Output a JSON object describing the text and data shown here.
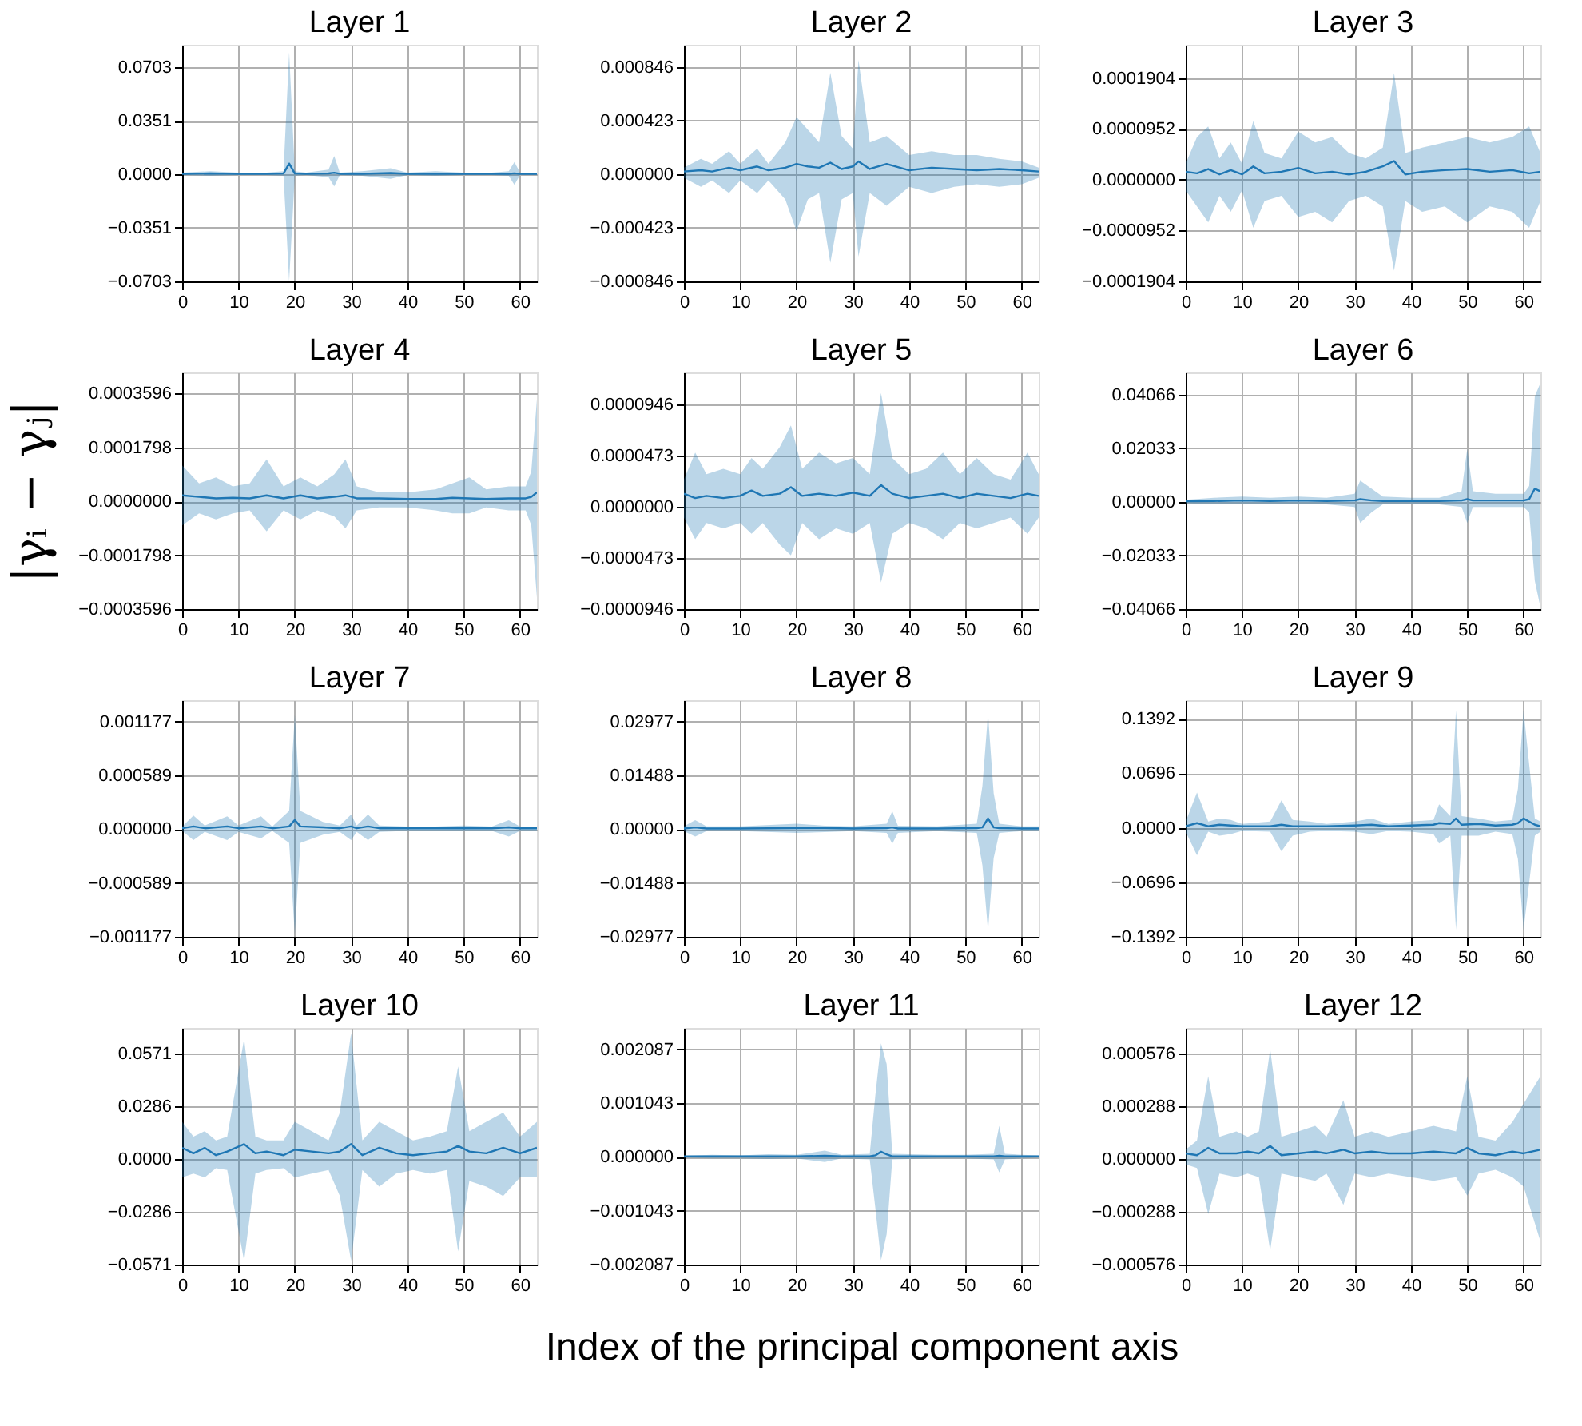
{
  "chart_data": [
    {
      "type": "line",
      "title": "Layer 1",
      "xlim": [
        0,
        63
      ],
      "xticks": [
        0,
        10,
        20,
        30,
        40,
        50,
        60
      ],
      "ylim": [
        -0.0703,
        0.085
      ],
      "yticks": [
        {
          "value": -0.0703,
          "label": "−0.0703"
        },
        {
          "value": -0.0351,
          "label": "−0.0351"
        },
        {
          "value": 0,
          "label": "0.0000"
        },
        {
          "value": 0.0351,
          "label": "0.0351"
        },
        {
          "value": 0.0703,
          "label": "0.0703"
        }
      ],
      "grid": true,
      "marker": "none",
      "series": [
        {
          "color": "#1f77b4",
          "x": [
            0,
            5,
            10,
            15,
            18,
            19,
            20,
            22,
            26,
            27,
            28,
            32,
            37,
            40,
            45,
            50,
            55,
            58,
            59,
            60,
            63
          ],
          "values": [
            0.0002,
            0.0005,
            0.0002,
            0.0003,
            0.0005,
            0.007,
            0.0005,
            0.0003,
            0.0005,
            0.001,
            0.0003,
            0.0003,
            0.0008,
            0.0003,
            0.0003,
            0.0002,
            0.0002,
            0.0003,
            0.0006,
            0.0002,
            0.0002
          ],
          "lower": [
            -0.0005,
            -0.001,
            -0.0005,
            -0.0005,
            -0.001,
            -0.07,
            -0.001,
            -0.0005,
            -0.002,
            -0.008,
            -0.0005,
            -0.001,
            -0.003,
            -0.0005,
            -0.001,
            -0.0005,
            -0.0005,
            -0.001,
            -0.007,
            -0.0005,
            -0.0005
          ],
          "upper": [
            0.001,
            0.002,
            0.001,
            0.001,
            0.002,
            0.08,
            0.002,
            0.001,
            0.003,
            0.012,
            0.001,
            0.002,
            0.004,
            0.001,
            0.002,
            0.001,
            0.001,
            0.002,
            0.008,
            0.001,
            0.001
          ]
        }
      ]
    },
    {
      "type": "line",
      "title": "Layer 2",
      "xlim": [
        0,
        63
      ],
      "xticks": [
        0,
        10,
        20,
        30,
        40,
        50,
        60
      ],
      "ylim": [
        -0.000846,
        0.00102
      ],
      "yticks": [
        {
          "value": -0.000846,
          "label": "−0.000846"
        },
        {
          "value": -0.000423,
          "label": "−0.000423"
        },
        {
          "value": 0,
          "label": "0.000000"
        },
        {
          "value": 0.000423,
          "label": "0.000423"
        },
        {
          "value": 0.000846,
          "label": "0.000846"
        }
      ],
      "grid": true,
      "marker": "none",
      "series": [
        {
          "color": "#1f77b4",
          "x": [
            0,
            3,
            5,
            8,
            10,
            13,
            15,
            18,
            20,
            22,
            24,
            26,
            28,
            30,
            31,
            33,
            36,
            40,
            44,
            48,
            52,
            56,
            60,
            63
          ],
          "values": [
            2e-05,
            3e-05,
            2e-05,
            5e-05,
            3e-05,
            6e-05,
            3e-05,
            5e-05,
            8e-05,
            6e-05,
            5e-05,
            9e-05,
            4e-05,
            6e-05,
            0.0001,
            4e-05,
            8e-05,
            3e-05,
            5e-05,
            4e-05,
            3e-05,
            4e-05,
            3e-05,
            2e-05
          ],
          "lower": [
            -3e-05,
            -0.0001,
            -5e-05,
            -0.00015,
            -5e-05,
            -0.00015,
            -5e-05,
            -0.0002,
            -0.00045,
            -0.0002,
            -0.00015,
            -0.0007,
            -0.0002,
            -0.00015,
            -0.00065,
            -0.00015,
            -0.00025,
            -0.0001,
            -0.00015,
            -0.0001,
            -8e-05,
            -0.0001,
            -8e-05,
            -3e-05
          ],
          "upper": [
            5e-05,
            0.00012,
            8e-05,
            0.00018,
            8e-05,
            0.0002,
            8e-05,
            0.00025,
            0.00045,
            0.00035,
            0.00025,
            0.0008,
            0.0003,
            0.0002,
            0.0009,
            0.00025,
            0.0003,
            0.00015,
            0.00018,
            0.00015,
            0.00015,
            0.00012,
            0.0001,
            5e-05
          ]
        }
      ]
    },
    {
      "type": "line",
      "title": "Layer 3",
      "xlim": [
        0,
        63
      ],
      "xticks": [
        0,
        10,
        20,
        30,
        40,
        50,
        60
      ],
      "ylim": [
        -0.0001904,
        0.000253
      ],
      "yticks": [
        {
          "value": -0.0001904,
          "label": "−0.0001904"
        },
        {
          "value": -9.52e-05,
          "label": "−0.0000952"
        },
        {
          "value": 0,
          "label": "0.0000000"
        },
        {
          "value": 9.52e-05,
          "label": "0.0000952"
        },
        {
          "value": 0.0001904,
          "label": "0.0001904"
        }
      ],
      "grid": true,
      "marker": "none",
      "series": [
        {
          "color": "#1f77b4",
          "x": [
            0,
            2,
            4,
            6,
            8,
            10,
            12,
            14,
            17,
            20,
            23,
            26,
            29,
            32,
            35,
            37,
            39,
            42,
            46,
            50,
            54,
            58,
            61,
            63
          ],
          "values": [
            1.5e-05,
            1.2e-05,
            2e-05,
            1e-05,
            1.8e-05,
            1e-05,
            2.5e-05,
            1.2e-05,
            1.5e-05,
            2.2e-05,
            1.2e-05,
            1.5e-05,
            1e-05,
            1.5e-05,
            2.5e-05,
            3.5e-05,
            1e-05,
            1.5e-05,
            1.8e-05,
            2e-05,
            1.5e-05,
            1.8e-05,
            1.2e-05,
            1.5e-05
          ],
          "lower": [
            -2e-05,
            -5e-05,
            -8e-05,
            -3e-05,
            -6e-05,
            -2e-05,
            -9e-05,
            -4e-05,
            -3e-05,
            -7e-05,
            -6e-05,
            -8e-05,
            -4e-05,
            -3e-05,
            -5e-05,
            -0.00017,
            -4e-05,
            -6e-05,
            -5e-05,
            -8e-05,
            -5e-05,
            -6e-05,
            -9e-05,
            -4e-05
          ],
          "upper": [
            3e-05,
            8e-05,
            0.0001,
            4e-05,
            7e-05,
            3e-05,
            0.00011,
            5e-05,
            4e-05,
            9e-05,
            7e-05,
            8e-05,
            5e-05,
            4e-05,
            6e-05,
            0.0002,
            5e-05,
            6e-05,
            7e-05,
            8e-05,
            7e-05,
            8e-05,
            0.0001,
            5e-05
          ]
        }
      ]
    },
    {
      "type": "line",
      "title": "Layer 4",
      "ylabel": "|γᵢ − γⱼ|",
      "xlim": [
        0,
        63
      ],
      "xticks": [
        0,
        10,
        20,
        30,
        40,
        50,
        60
      ],
      "ylim": [
        -0.0003596,
        0.00043
      ],
      "yticks": [
        {
          "value": -0.0003596,
          "label": "−0.0003596"
        },
        {
          "value": -0.0001798,
          "label": "−0.0001798"
        },
        {
          "value": 0,
          "label": "0.0000000"
        },
        {
          "value": 0.0001798,
          "label": "0.0001798"
        },
        {
          "value": 0.0003596,
          "label": "0.0003596"
        }
      ],
      "grid": true,
      "marker": "none",
      "series": [
        {
          "color": "#1f77b4",
          "x": [
            0,
            3,
            6,
            9,
            12,
            15,
            18,
            21,
            24,
            27,
            29,
            31,
            35,
            40,
            45,
            48,
            51,
            54,
            58,
            61,
            62,
            63
          ],
          "values": [
            2e-05,
            1.5e-05,
            1e-05,
            1.2e-05,
            1e-05,
            2e-05,
            1e-05,
            2e-05,
            1e-05,
            1.5e-05,
            2e-05,
            1e-05,
            1e-05,
            8e-06,
            8e-06,
            1.2e-05,
            1e-05,
            8e-06,
            1e-05,
            1e-05,
            1.5e-05,
            3e-05
          ],
          "lower": [
            -8e-05,
            -4e-05,
            -6e-05,
            -4e-05,
            -3e-05,
            -0.0001,
            -3e-05,
            -6e-05,
            -3e-05,
            -5e-05,
            -9e-05,
            -3e-05,
            -2e-05,
            -2e-05,
            -3e-05,
            -4e-05,
            -4e-05,
            -2e-05,
            -3e-05,
            -3e-05,
            -8e-05,
            -0.00032
          ],
          "upper": [
            0.00012,
            6e-05,
            8e-05,
            5e-05,
            6e-05,
            0.00014,
            5e-05,
            8e-05,
            5e-05,
            9e-05,
            0.00014,
            5e-05,
            3e-05,
            3e-05,
            4e-05,
            6e-05,
            8e-05,
            4e-05,
            5e-05,
            5e-05,
            0.0001,
            0.00034
          ]
        }
      ]
    },
    {
      "type": "line",
      "title": "Layer 5",
      "xlim": [
        0,
        63
      ],
      "xticks": [
        0,
        10,
        20,
        30,
        40,
        50,
        60
      ],
      "ylim": [
        -9.46e-05,
        0.000124
      ],
      "yticks": [
        {
          "value": -9.46e-05,
          "label": "−0.0000946"
        },
        {
          "value": -4.73e-05,
          "label": "−0.0000473"
        },
        {
          "value": 0,
          "label": "0.0000000"
        },
        {
          "value": 4.73e-05,
          "label": "0.0000473"
        },
        {
          "value": 9.46e-05,
          "label": "0.0000946"
        }
      ],
      "grid": true,
      "marker": "none",
      "series": [
        {
          "color": "#1f77b4",
          "x": [
            0,
            2,
            4,
            7,
            10,
            12,
            14,
            17,
            19,
            21,
            24,
            27,
            30,
            33,
            35,
            37,
            40,
            43,
            46,
            49,
            52,
            55,
            58,
            61,
            63
          ],
          "values": [
            1.2e-05,
            8e-06,
            1e-05,
            8e-06,
            1e-05,
            1.5e-05,
            1e-05,
            1.2e-05,
            1.8e-05,
            1e-05,
            1.2e-05,
            1e-05,
            1.3e-05,
            1e-05,
            2e-05,
            1.2e-05,
            8e-06,
            1e-05,
            1.2e-05,
            8e-06,
            1.2e-05,
            1e-05,
            8e-06,
            1.2e-05,
            1e-05
          ],
          "lower": [
            -1e-05,
            -3e-05,
            -1.5e-05,
            -2e-05,
            -1.5e-05,
            -2.5e-05,
            -1.5e-05,
            -3.5e-05,
            -4.5e-05,
            -1.5e-05,
            -3e-05,
            -2e-05,
            -2.5e-05,
            -1.5e-05,
            -7e-05,
            -2.5e-05,
            -1.5e-05,
            -2e-05,
            -3e-05,
            -1.5e-05,
            -2e-05,
            -1.5e-05,
            -1e-05,
            -2.5e-05,
            -1e-05
          ],
          "upper": [
            2.5e-05,
            5e-05,
            3e-05,
            3.5e-05,
            3e-05,
            4.5e-05,
            3.5e-05,
            5.5e-05,
            7.5e-05,
            3.5e-05,
            5e-05,
            4e-05,
            4.5e-05,
            3e-05,
            0.000105,
            4.5e-05,
            3e-05,
            3.5e-05,
            5e-05,
            3e-05,
            4.5e-05,
            3e-05,
            2.5e-05,
            5e-05,
            3e-05
          ]
        }
      ]
    },
    {
      "type": "line",
      "title": "Layer 6",
      "xlim": [
        0,
        63
      ],
      "xticks": [
        0,
        10,
        20,
        30,
        40,
        50,
        60
      ],
      "ylim": [
        -0.04066,
        0.049
      ],
      "yticks": [
        {
          "value": -0.04066,
          "label": "−0.04066"
        },
        {
          "value": -0.02033,
          "label": "−0.02033"
        },
        {
          "value": 0,
          "label": "0.00000"
        },
        {
          "value": 0.02033,
          "label": "0.02033"
        },
        {
          "value": 0.04066,
          "label": "0.04066"
        }
      ],
      "grid": true,
      "marker": "none",
      "series": [
        {
          "color": "#1f77b4",
          "x": [
            0,
            5,
            10,
            15,
            20,
            25,
            30,
            31,
            33,
            35,
            40,
            45,
            49,
            50,
            51,
            55,
            60,
            61,
            62,
            63
          ],
          "values": [
            0.0002,
            0.0003,
            0.0005,
            0.0003,
            0.0005,
            0.0003,
            0.0005,
            0.001,
            0.0005,
            0.0003,
            0.0003,
            0.0003,
            0.0005,
            0.001,
            0.0005,
            0.0005,
            0.0005,
            0.001,
            0.005,
            0.004
          ],
          "lower": [
            -0.0005,
            -0.001,
            -0.001,
            -0.001,
            -0.001,
            -0.001,
            -0.002,
            -0.008,
            -0.004,
            -0.001,
            -0.001,
            -0.001,
            -0.002,
            -0.008,
            -0.002,
            -0.002,
            -0.002,
            -0.004,
            -0.03,
            -0.04
          ],
          "upper": [
            0.0008,
            0.0015,
            0.002,
            0.0015,
            0.002,
            0.0015,
            0.003,
            0.008,
            0.005,
            0.002,
            0.0015,
            0.0015,
            0.004,
            0.02,
            0.004,
            0.003,
            0.003,
            0.006,
            0.04,
            0.045
          ]
        }
      ]
    },
    {
      "type": "line",
      "title": "Layer 7",
      "xlim": [
        0,
        63
      ],
      "xticks": [
        0,
        10,
        20,
        30,
        40,
        50,
        60
      ],
      "ylim": [
        -0.001177,
        0.00141
      ],
      "yticks": [
        {
          "value": -0.001177,
          "label": "−0.001177"
        },
        {
          "value": -0.000589,
          "label": "−0.000589"
        },
        {
          "value": 0,
          "label": "0.000000"
        },
        {
          "value": 0.000589,
          "label": "0.000589"
        },
        {
          "value": 0.001177,
          "label": "0.001177"
        }
      ],
      "grid": true,
      "marker": "none",
      "series": [
        {
          "color": "#1f77b4",
          "x": [
            0,
            2,
            4,
            8,
            10,
            14,
            16,
            19,
            20,
            21,
            25,
            28,
            30,
            31,
            33,
            35,
            40,
            45,
            50,
            55,
            58,
            60,
            63
          ],
          "values": [
            1e-05,
            3e-05,
            1e-05,
            3e-05,
            1e-05,
            3e-05,
            1e-05,
            3e-05,
            0.0001,
            3e-05,
            2e-05,
            1e-05,
            3e-05,
            1e-05,
            3e-05,
            1e-05,
            1e-05,
            1e-05,
            1e-05,
            1e-05,
            2e-05,
            1e-05,
            1e-05
          ],
          "lower": [
            -2e-05,
            -0.00012,
            -3e-05,
            -0.00012,
            -3e-05,
            -0.0001,
            -2e-05,
            -0.00015,
            -0.00115,
            -0.00015,
            -6e-05,
            -3e-05,
            -0.00012,
            -3e-05,
            -0.00012,
            -3e-05,
            -2e-05,
            -2e-05,
            -2e-05,
            -2e-05,
            -8e-05,
            -2e-05,
            -2e-05
          ],
          "upper": [
            3e-05,
            0.00015,
            4e-05,
            0.00014,
            4e-05,
            0.00014,
            3e-05,
            0.0002,
            0.00125,
            0.0002,
            8e-05,
            4e-05,
            0.00016,
            4e-05,
            0.00016,
            4e-05,
            3e-05,
            3e-05,
            4e-05,
            3e-05,
            0.0001,
            3e-05,
            3e-05
          ]
        }
      ]
    },
    {
      "type": "line",
      "title": "Layer 8",
      "xlim": [
        0,
        63
      ],
      "xticks": [
        0,
        10,
        20,
        30,
        40,
        50,
        60
      ],
      "ylim": [
        -0.02977,
        0.0357
      ],
      "yticks": [
        {
          "value": -0.02977,
          "label": "−0.02977"
        },
        {
          "value": -0.01488,
          "label": "−0.01488"
        },
        {
          "value": 0,
          "label": "0.00000"
        },
        {
          "value": 0.01488,
          "label": "0.01488"
        },
        {
          "value": 0.02977,
          "label": "0.02977"
        }
      ],
      "grid": true,
      "marker": "none",
      "series": [
        {
          "color": "#1f77b4",
          "x": [
            0,
            2,
            4,
            10,
            20,
            25,
            30,
            36,
            37,
            38,
            45,
            52,
            53,
            54,
            55,
            56,
            60,
            63
          ],
          "values": [
            0.0002,
            0.0005,
            0.0002,
            0.0002,
            0.0003,
            0.0003,
            0.0002,
            0.0003,
            0.0005,
            0.0002,
            0.0002,
            0.0003,
            0.0005,
            0.003,
            0.0005,
            0.0003,
            0.0002,
            0.0002
          ],
          "lower": [
            -0.0005,
            -0.002,
            -0.0005,
            -0.0005,
            -0.001,
            -0.0008,
            -0.0005,
            -0.001,
            -0.004,
            -0.001,
            -0.0005,
            -0.001,
            -0.01,
            -0.028,
            -0.008,
            -0.001,
            -0.0005,
            -0.0005
          ],
          "upper": [
            0.0008,
            0.0025,
            0.0008,
            0.0008,
            0.0015,
            0.001,
            0.0008,
            0.0015,
            0.005,
            0.001,
            0.0008,
            0.0015,
            0.012,
            0.032,
            0.01,
            0.0015,
            0.0008,
            0.0008
          ]
        }
      ]
    },
    {
      "type": "line",
      "title": "Layer 9",
      "xlim": [
        0,
        63
      ],
      "xticks": [
        0,
        10,
        20,
        30,
        40,
        50,
        60
      ],
      "ylim": [
        -0.1392,
        0.163
      ],
      "yticks": [
        {
          "value": -0.1392,
          "label": "−0.1392"
        },
        {
          "value": -0.0696,
          "label": "−0.0696"
        },
        {
          "value": 0,
          "label": "0.0000"
        },
        {
          "value": 0.0696,
          "label": "0.0696"
        },
        {
          "value": 0.1392,
          "label": "0.1392"
        }
      ],
      "grid": true,
      "marker": "none",
      "series": [
        {
          "color": "#1f77b4",
          "x": [
            0,
            2,
            4,
            6,
            8,
            10,
            15,
            17,
            19,
            22,
            25,
            30,
            33,
            36,
            40,
            44,
            45,
            47,
            48,
            49,
            52,
            55,
            58,
            59,
            60,
            62,
            63
          ],
          "values": [
            0.002,
            0.006,
            0.002,
            0.004,
            0.003,
            0.002,
            0.002,
            0.004,
            0.002,
            0.002,
            0.002,
            0.003,
            0.004,
            0.002,
            0.003,
            0.004,
            0.006,
            0.005,
            0.012,
            0.004,
            0.005,
            0.003,
            0.004,
            0.006,
            0.012,
            0.004,
            0.002
          ],
          "lower": [
            -0.005,
            -0.035,
            -0.005,
            -0.01,
            -0.008,
            -0.004,
            -0.005,
            -0.03,
            -0.01,
            -0.005,
            -0.004,
            -0.005,
            -0.008,
            -0.004,
            -0.005,
            -0.008,
            -0.02,
            -0.01,
            -0.13,
            -0.01,
            -0.01,
            -0.005,
            -0.008,
            -0.04,
            -0.13,
            -0.01,
            -0.005
          ],
          "upper": [
            0.008,
            0.045,
            0.008,
            0.012,
            0.01,
            0.005,
            0.008,
            0.035,
            0.01,
            0.008,
            0.005,
            0.008,
            0.012,
            0.005,
            0.008,
            0.01,
            0.03,
            0.015,
            0.15,
            0.015,
            0.012,
            0.008,
            0.01,
            0.05,
            0.15,
            0.012,
            0.008
          ]
        }
      ]
    },
    {
      "type": "line",
      "title": "Layer 10",
      "xlim": [
        0,
        63
      ],
      "xticks": [
        0,
        10,
        20,
        30,
        40,
        50,
        60
      ],
      "ylim": [
        -0.0571,
        0.0708
      ],
      "yticks": [
        {
          "value": -0.0571,
          "label": "−0.0571"
        },
        {
          "value": -0.0286,
          "label": "−0.0286"
        },
        {
          "value": 0,
          "label": "0.0000"
        },
        {
          "value": 0.0286,
          "label": "0.0286"
        },
        {
          "value": 0.0571,
          "label": "0.0571"
        }
      ],
      "grid": true,
      "marker": "none",
      "series": [
        {
          "color": "#1f77b4",
          "x": [
            0,
            2,
            4,
            6,
            8,
            11,
            13,
            15,
            18,
            20,
            23,
            26,
            28,
            30,
            32,
            35,
            38,
            41,
            44,
            47,
            49,
            51,
            54,
            57,
            60,
            63
          ],
          "values": [
            0.006,
            0.003,
            0.006,
            0.002,
            0.004,
            0.008,
            0.003,
            0.004,
            0.002,
            0.005,
            0.004,
            0.003,
            0.004,
            0.008,
            0.002,
            0.006,
            0.003,
            0.002,
            0.003,
            0.004,
            0.007,
            0.004,
            0.003,
            0.006,
            0.003,
            0.006
          ],
          "lower": [
            -0.01,
            -0.008,
            -0.01,
            -0.005,
            -0.006,
            -0.055,
            -0.008,
            -0.006,
            -0.005,
            -0.01,
            -0.008,
            -0.006,
            -0.02,
            -0.055,
            -0.006,
            -0.015,
            -0.008,
            -0.006,
            -0.008,
            -0.006,
            -0.05,
            -0.012,
            -0.015,
            -0.02,
            -0.01,
            -0.01
          ],
          "upper": [
            0.02,
            0.012,
            0.015,
            0.01,
            0.012,
            0.065,
            0.012,
            0.01,
            0.01,
            0.02,
            0.015,
            0.01,
            0.025,
            0.068,
            0.01,
            0.02,
            0.015,
            0.01,
            0.012,
            0.015,
            0.05,
            0.015,
            0.02,
            0.025,
            0.012,
            0.02
          ]
        }
      ]
    },
    {
      "type": "line",
      "title": "Layer 11",
      "xlabel": "Index of the principal component axis",
      "xlim": [
        0,
        63
      ],
      "xticks": [
        0,
        10,
        20,
        30,
        40,
        50,
        60
      ],
      "ylim": [
        -0.002087,
        0.0025
      ],
      "yticks": [
        {
          "value": -0.002087,
          "label": "−0.002087"
        },
        {
          "value": -0.001043,
          "label": "−0.001043"
        },
        {
          "value": 0,
          "label": "0.000000"
        },
        {
          "value": 0.001043,
          "label": "0.001043"
        },
        {
          "value": 0.002087,
          "label": "0.002087"
        }
      ],
      "grid": true,
      "marker": "none",
      "series": [
        {
          "color": "#1f77b4",
          "x": [
            0,
            5,
            10,
            15,
            20,
            25,
            28,
            33,
            34,
            35,
            36,
            37,
            40,
            45,
            50,
            55,
            56,
            57,
            60,
            63
          ],
          "values": [
            1e-05,
            1e-05,
            1e-05,
            1e-05,
            1e-05,
            2e-05,
            1e-05,
            1e-05,
            3e-05,
            0.0001,
            5e-05,
            1e-05,
            1e-05,
            1e-05,
            1e-05,
            1e-05,
            2e-05,
            1e-05,
            1e-05,
            1e-05
          ],
          "lower": [
            -2e-05,
            -3e-05,
            -3e-05,
            -4e-05,
            -3e-05,
            -0.0001,
            -3e-05,
            -5e-05,
            -0.001,
            -0.002,
            -0.0015,
            -5e-05,
            -4e-05,
            -3e-05,
            -3e-05,
            -5e-05,
            -0.0003,
            -5e-05,
            -3e-05,
            -2e-05
          ],
          "upper": [
            2e-05,
            4e-05,
            3e-05,
            5e-05,
            4e-05,
            0.00012,
            4e-05,
            6e-05,
            0.0012,
            0.0022,
            0.0018,
            6e-05,
            5e-05,
            4e-05,
            4e-05,
            6e-05,
            0.0006,
            6e-05,
            4e-05,
            3e-05
          ]
        }
      ]
    },
    {
      "type": "line",
      "title": "Layer 12",
      "xlim": [
        0,
        63
      ],
      "xticks": [
        0,
        10,
        20,
        30,
        40,
        50,
        60
      ],
      "ylim": [
        -0.000576,
        0.000714
      ],
      "yticks": [
        {
          "value": -0.000576,
          "label": "−0.000576"
        },
        {
          "value": -0.000288,
          "label": "−0.000288"
        },
        {
          "value": 0,
          "label": "0.000000"
        },
        {
          "value": 0.000288,
          "label": "0.000288"
        },
        {
          "value": 0.000576,
          "label": "0.000576"
        }
      ],
      "grid": true,
      "marker": "none",
      "series": [
        {
          "color": "#1f77b4",
          "x": [
            0,
            2,
            4,
            6,
            9,
            11,
            13,
            15,
            17,
            20,
            23,
            25,
            28,
            30,
            33,
            36,
            40,
            44,
            48,
            50,
            52,
            55,
            58,
            60,
            63
          ],
          "values": [
            3e-05,
            2e-05,
            6e-05,
            3e-05,
            3e-05,
            4e-05,
            3e-05,
            7e-05,
            2e-05,
            3e-05,
            4e-05,
            3e-05,
            5e-05,
            3e-05,
            4e-05,
            3e-05,
            3e-05,
            4e-05,
            3e-05,
            6e-05,
            3e-05,
            2e-05,
            4e-05,
            3e-05,
            5e-05
          ],
          "lower": [
            -3e-05,
            -5e-05,
            -0.0003,
            -8e-05,
            -0.0001,
            -8e-05,
            -0.0001,
            -0.0005,
            -8e-05,
            -0.0001,
            -0.00012,
            -8e-05,
            -0.00025,
            -8e-05,
            -0.0001,
            -8e-05,
            -0.0001,
            -0.00012,
            -0.0001,
            -0.0002,
            -8e-05,
            -6e-05,
            -0.0001,
            -0.00015,
            -0.00045
          ],
          "upper": [
            5e-05,
            0.0001,
            0.00045,
            0.00012,
            0.00015,
            0.00012,
            0.00015,
            0.0006,
            0.00012,
            0.00015,
            0.00018,
            0.00012,
            0.00032,
            0.00012,
            0.00015,
            0.00012,
            0.00015,
            0.00018,
            0.00015,
            0.00045,
            0.00012,
            0.0001,
            0.0002,
            0.0003,
            0.00045
          ]
        }
      ]
    }
  ]
}
